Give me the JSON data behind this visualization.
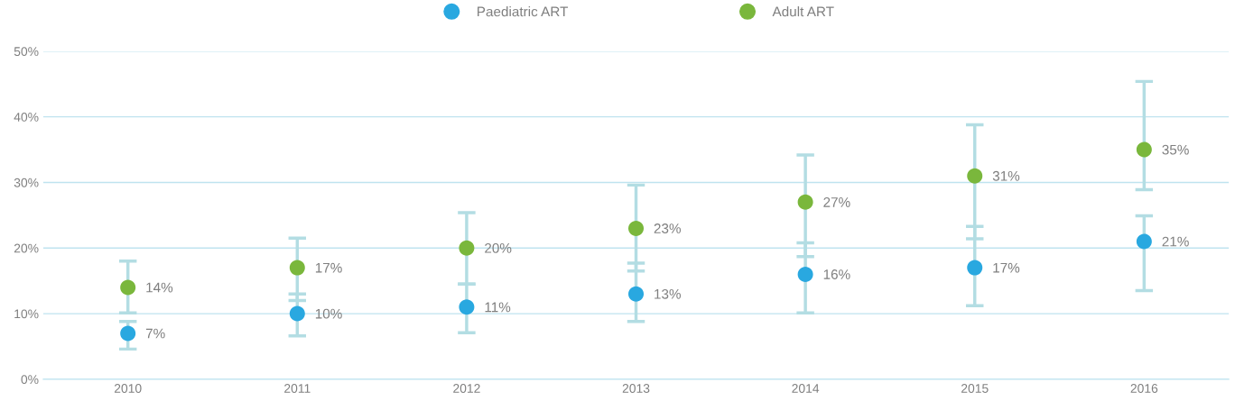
{
  "chart_data": {
    "type": "scatter",
    "categories": [
      "2010",
      "2011",
      "2012",
      "2013",
      "2014",
      "2015",
      "2016"
    ],
    "series": [
      {
        "name": "Paediatric ART",
        "color": "#29a8e0",
        "values": [
          7,
          10,
          11,
          13,
          16,
          17,
          21
        ],
        "value_labels": [
          "7%",
          "10%",
          "11%",
          "13%",
          "16%",
          "17%",
          "21%"
        ],
        "errors": [
          [
            4.6,
            8.8
          ],
          [
            6.6,
            13.0
          ],
          [
            7.1,
            14.5
          ],
          [
            8.8,
            17.7
          ],
          [
            10.1,
            20.8
          ],
          [
            11.2,
            23.3
          ],
          [
            13.5,
            24.9
          ]
        ]
      },
      {
        "name": "Adult ART",
        "color": "#7ab73c",
        "values": [
          14,
          17,
          20,
          23,
          27,
          31,
          35
        ],
        "value_labels": [
          "14%",
          "17%",
          "20%",
          "23%",
          "27%",
          "31%",
          "35%"
        ],
        "errors": [
          [
            10.1,
            18.0
          ],
          [
            12.0,
            21.5
          ],
          [
            14.5,
            25.4
          ],
          [
            16.5,
            29.6
          ],
          [
            18.7,
            34.2
          ],
          [
            21.4,
            38.8
          ],
          [
            28.9,
            45.4
          ]
        ]
      }
    ],
    "ylim": [
      0,
      50
    ],
    "yticks": [
      {
        "value": 0,
        "label": "0%"
      },
      {
        "value": 10,
        "label": "10%"
      },
      {
        "value": 20,
        "label": "20%"
      },
      {
        "value": 30,
        "label": "30%"
      },
      {
        "value": 40,
        "label": "40%"
      },
      {
        "value": 50,
        "label": "50%"
      }
    ],
    "grid": "y",
    "legend": "top",
    "marker": "circle"
  }
}
